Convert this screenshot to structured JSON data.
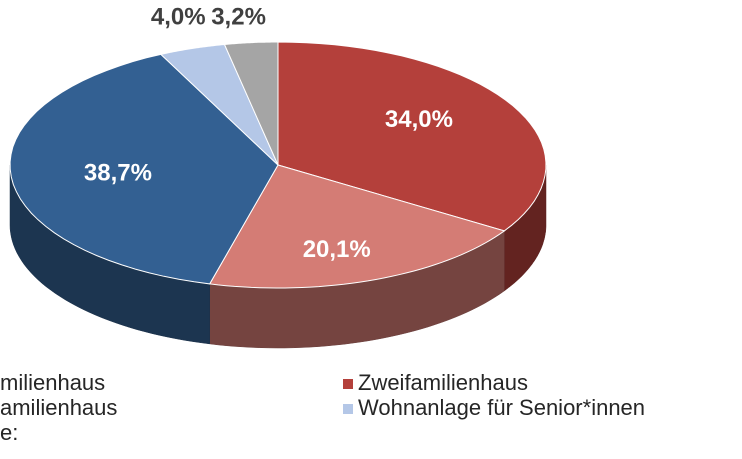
{
  "chart_data": {
    "type": "pie3d",
    "categories": [
      "Zweifamilienhaus",
      "amilienhaus",
      "milienhaus",
      "Wohnanlage für Senior*innen",
      "e:"
    ],
    "values": [
      34.0,
      20.1,
      38.7,
      4.0,
      3.2
    ],
    "value_labels": [
      "34,0%",
      "20,1%",
      "38,7%",
      "4,0%",
      "3,2%"
    ],
    "colors": [
      "#b4403b",
      "#d47c75",
      "#336092",
      "#b4c7e7",
      "#a5a5a5"
    ]
  }
}
